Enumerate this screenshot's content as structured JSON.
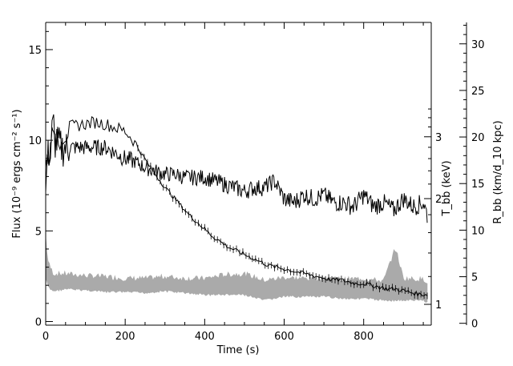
{
  "chart_data": {
    "type": "line",
    "xlabel": "Time (s)",
    "ylabel_left": "Flux (10⁻⁹ ergs cm⁻² s⁻¹)",
    "ylabel_right_kt": "T_bb (keV)",
    "ylabel_right_r": "R_bb (km/d_10 kpc)",
    "xlim": [
      0,
      970
    ],
    "flux_ylim": [
      -0.2,
      16.5
    ],
    "kt_ticks": [
      1,
      2,
      3
    ],
    "r_ylim": [
      -0.2,
      32.3
    ],
    "x_ticks": [
      0,
      200,
      400,
      600,
      800
    ],
    "flux_ticks": [
      0,
      5,
      10,
      15
    ],
    "r_ticks": [
      0,
      5,
      10,
      15,
      20,
      25,
      30
    ],
    "series": [
      {
        "name": "Flux",
        "style": "line-with-errorbars",
        "color": "#000000",
        "x": [
          0,
          5,
          10,
          20,
          30,
          50,
          75,
          100,
          125,
          150,
          175,
          200,
          220,
          240,
          260,
          280,
          300,
          320,
          340,
          360,
          380,
          400,
          420,
          440,
          460,
          480,
          500,
          520,
          540,
          560,
          580,
          600,
          620,
          640,
          660,
          680,
          700,
          720,
          740,
          760,
          780,
          800,
          820,
          840,
          860,
          880,
          900,
          920,
          940,
          960
        ],
        "y": [
          7.5,
          9.0,
          10.0,
          10.3,
          10.5,
          10.7,
          10.8,
          10.9,
          11.0,
          10.9,
          10.7,
          10.5,
          10.0,
          9.3,
          8.6,
          8.0,
          7.4,
          6.9,
          6.4,
          5.9,
          5.5,
          5.1,
          4.7,
          4.4,
          4.1,
          3.9,
          3.7,
          3.5,
          3.3,
          3.1,
          3.0,
          2.9,
          2.8,
          2.7,
          2.6,
          2.5,
          2.4,
          2.3,
          2.3,
          2.2,
          2.1,
          2.1,
          2.0,
          1.9,
          1.8,
          1.8,
          1.7,
          1.6,
          1.5,
          1.5
        ]
      },
      {
        "name": "kT_bb",
        "style": "line",
        "color": "#000000",
        "x": [
          0,
          5,
          10,
          15,
          20,
          30,
          40,
          50,
          75,
          100,
          125,
          150,
          175,
          200,
          225,
          250,
          275,
          300,
          325,
          350,
          375,
          400,
          425,
          450,
          475,
          500,
          525,
          550,
          575,
          600,
          625,
          650,
          675,
          700,
          725,
          750,
          775,
          800,
          825,
          850,
          875,
          900,
          925,
          950,
          960
        ],
        "y": [
          2.4,
          2.6,
          2.8,
          3.0,
          2.9,
          2.9,
          2.8,
          2.8,
          2.8,
          2.8,
          2.8,
          2.8,
          2.7,
          2.6,
          2.55,
          2.45,
          2.4,
          2.35,
          2.35,
          2.3,
          2.3,
          2.3,
          2.25,
          2.2,
          2.15,
          2.1,
          2.15,
          2.15,
          2.25,
          2.0,
          1.95,
          2.05,
          2.0,
          2.05,
          1.95,
          1.95,
          1.9,
          2.05,
          1.9,
          1.95,
          1.85,
          2.0,
          1.9,
          1.95,
          1.8
        ]
      },
      {
        "name": "R_bb",
        "style": "band",
        "color": "#aaaaaa",
        "x": [
          0,
          5,
          10,
          20,
          50,
          100,
          150,
          200,
          250,
          300,
          350,
          400,
          450,
          500,
          550,
          600,
          650,
          700,
          750,
          800,
          850,
          880,
          900,
          950,
          960
        ],
        "y_low": [
          5.0,
          4.2,
          3.8,
          3.6,
          3.8,
          3.7,
          3.5,
          3.5,
          3.4,
          3.6,
          3.4,
          3.2,
          3.2,
          3.2,
          2.6,
          3.0,
          3.0,
          3.0,
          2.8,
          2.8,
          2.6,
          2.6,
          2.6,
          2.6,
          2.4
        ],
        "y_high": [
          9.0,
          6.5,
          5.8,
          5.0,
          5.0,
          4.8,
          4.7,
          4.5,
          4.5,
          4.7,
          4.5,
          4.5,
          4.9,
          5.0,
          4.3,
          4.6,
          4.5,
          4.6,
          4.4,
          4.5,
          4.2,
          7.8,
          4.5,
          4.4,
          4.2
        ]
      }
    ]
  }
}
